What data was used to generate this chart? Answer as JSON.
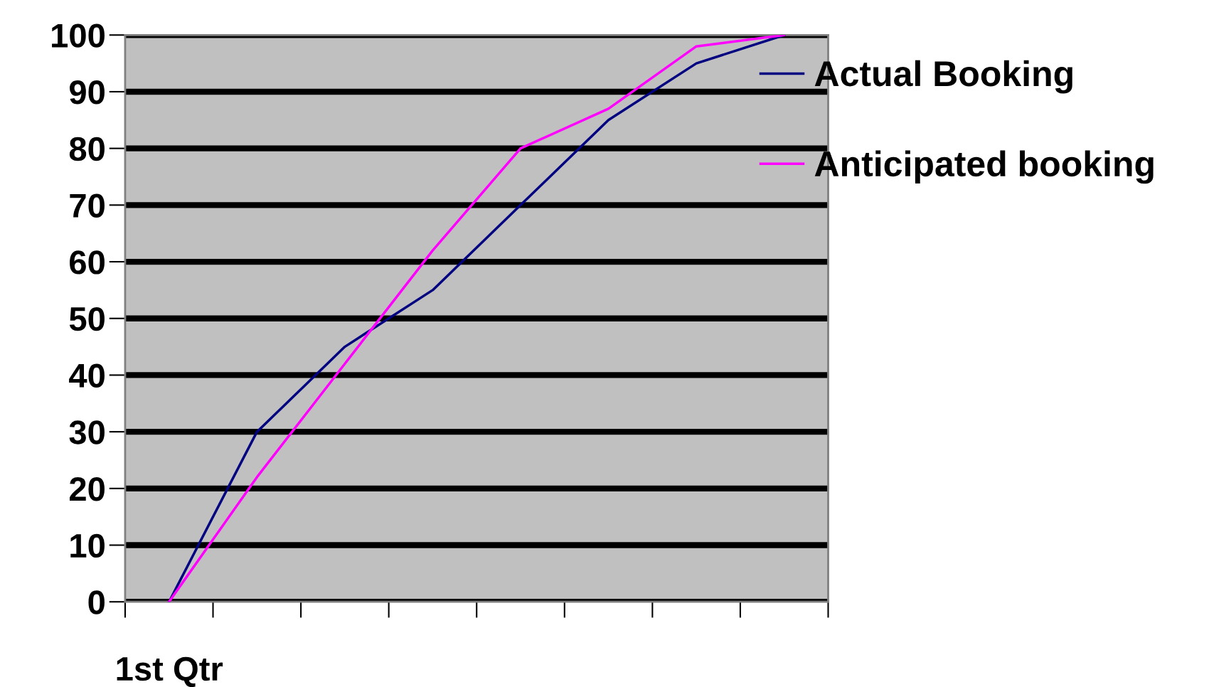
{
  "chart_data": {
    "type": "line",
    "categories": [
      "1st Qtr",
      null,
      null,
      null,
      null,
      null,
      null,
      null
    ],
    "series": [
      {
        "name": "Actual Booking",
        "color": "#000080",
        "values": [
          0,
          30,
          45,
          55,
          70,
          85,
          95,
          100
        ]
      },
      {
        "name": "Anticipated booking",
        "color": "#ff00ff",
        "values": [
          0,
          22,
          42,
          62,
          80,
          87,
          98,
          100
        ]
      }
    ],
    "ylim": [
      0,
      100
    ],
    "yticks": [
      0,
      10,
      20,
      30,
      40,
      50,
      60,
      70,
      80,
      90,
      100
    ],
    "grid": "y",
    "legend": "top right",
    "marker": "none",
    "line_style": "solid"
  }
}
